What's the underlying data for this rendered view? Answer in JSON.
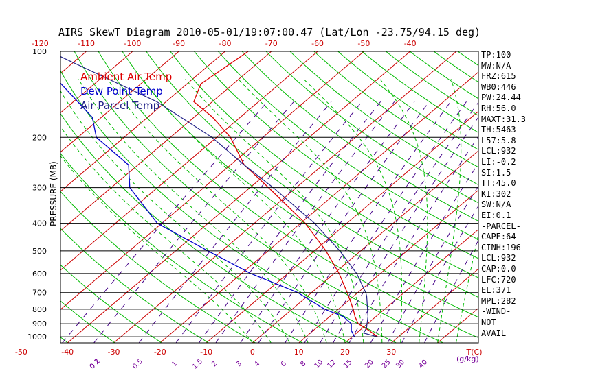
{
  "title": "AIRS SkewT Diagram 2010-05-01/19:07:00.47 (Lat/Lon -23.75/94.15 deg)",
  "colors": {
    "ambient": "#dd0000",
    "dewpoint": "#0000cc",
    "parcel": "#222288",
    "isotherm": "#cc0000",
    "dry_adiabat": "#00bb00",
    "moist_adiabat": "#00bb00",
    "mixing_ratio": "#440088",
    "temp_axis_label": "#cc0000",
    "mixing_axis_label": "#770099"
  },
  "legend": [
    {
      "label": "Ambient Air Temp",
      "color": "#dd0000"
    },
    {
      "label": "Dew Point Temp",
      "color": "#0000cc"
    },
    {
      "label": "Air Parcel Temp",
      "color": "#222288"
    }
  ],
  "chart_data": {
    "type": "line",
    "title": "AIRS SkewT Diagram 2010-05-01/19:07:00.47 (Lat/Lon -23.75/94.15 deg)",
    "ylabel": "PRESSURE (MB)",
    "y_scale": "log",
    "ylim": [
      1050,
      100
    ],
    "pressure_ticks": [
      100,
      200,
      300,
      400,
      500,
      600,
      700,
      800,
      900,
      1000
    ],
    "pressure_gridlines": [
      200,
      300,
      400,
      500,
      600,
      700,
      800,
      900,
      1000
    ],
    "bottom_temp_ticks": [
      -50,
      -40,
      -30,
      -20,
      -10,
      0,
      10,
      20,
      30
    ],
    "top_temp_ticks": [
      -120,
      -110,
      -100,
      -90,
      -80,
      -70,
      -60,
      -50,
      -40
    ],
    "temp_axis_unit": "T(C)",
    "mixing_ratio_labels": [
      "0.1",
      "0.2",
      "0.5",
      "1",
      "1.5",
      "2",
      "3",
      "4",
      "6",
      "8",
      "10",
      "12",
      "15",
      "20",
      "25",
      "30",
      "40"
    ],
    "mixing_ratio_unit": "(g/kg)",
    "series": [
      {
        "name": "Ambient Air Temp",
        "points": [
          [
            1000,
            25.5
          ],
          [
            950,
            22
          ],
          [
            900,
            18
          ],
          [
            850,
            15.5
          ],
          [
            800,
            13.2
          ],
          [
            700,
            7.7
          ],
          [
            600,
            1.1
          ],
          [
            500,
            -7.5
          ],
          [
            400,
            -19
          ],
          [
            300,
            -36
          ],
          [
            250,
            -47
          ],
          [
            200,
            -57
          ],
          [
            170,
            -66
          ],
          [
            150,
            -74
          ],
          [
            130,
            -77
          ],
          [
            100,
            -75
          ]
        ]
      },
      {
        "name": "Dew Point Temp",
        "points": [
          [
            1000,
            20.5
          ],
          [
            950,
            18.2
          ],
          [
            900,
            16.5
          ],
          [
            850,
            13
          ],
          [
            800,
            7
          ],
          [
            700,
            -3
          ],
          [
            600,
            -18
          ],
          [
            500,
            -33
          ],
          [
            400,
            -51
          ],
          [
            300,
            -66
          ],
          [
            250,
            -72
          ],
          [
            200,
            -86
          ],
          [
            170,
            -92
          ],
          [
            100,
            -122
          ]
        ]
      },
      {
        "name": "Air Parcel Temp",
        "points": [
          [
            1000,
            25.5
          ],
          [
            970,
            21.5
          ],
          [
            932,
            20.9
          ],
          [
            900,
            19.9
          ],
          [
            850,
            18.3
          ],
          [
            800,
            16.3
          ],
          [
            720,
            12.8
          ],
          [
            700,
            11.7
          ],
          [
            600,
            4.9
          ],
          [
            500,
            -4.5
          ],
          [
            400,
            -17
          ],
          [
            300,
            -35
          ],
          [
            250,
            -47
          ],
          [
            200,
            -61
          ],
          [
            150,
            -82
          ],
          [
            100,
            -118
          ]
        ]
      }
    ]
  },
  "indices": [
    "TP:100",
    "MW:N/A",
    "FRZ:615",
    "WB0:446",
    "PW:24.44",
    "RH:56.0",
    "MAXT:31.3",
    "TH:5463",
    "L57:5.8",
    "LCL:932",
    "LI:-0.2",
    "SI:1.5",
    "TT:45.0",
    "KI:302",
    "SW:N/A",
    "EI:0.1",
    "-PARCEL-",
    "CAPE:64",
    "CINH:196",
    "LCL:932",
    "CAP:0.0",
    "LFC:720",
    "EL:371",
    "MPL:282",
    "-WIND-",
    "NOT",
    "AVAIL"
  ]
}
